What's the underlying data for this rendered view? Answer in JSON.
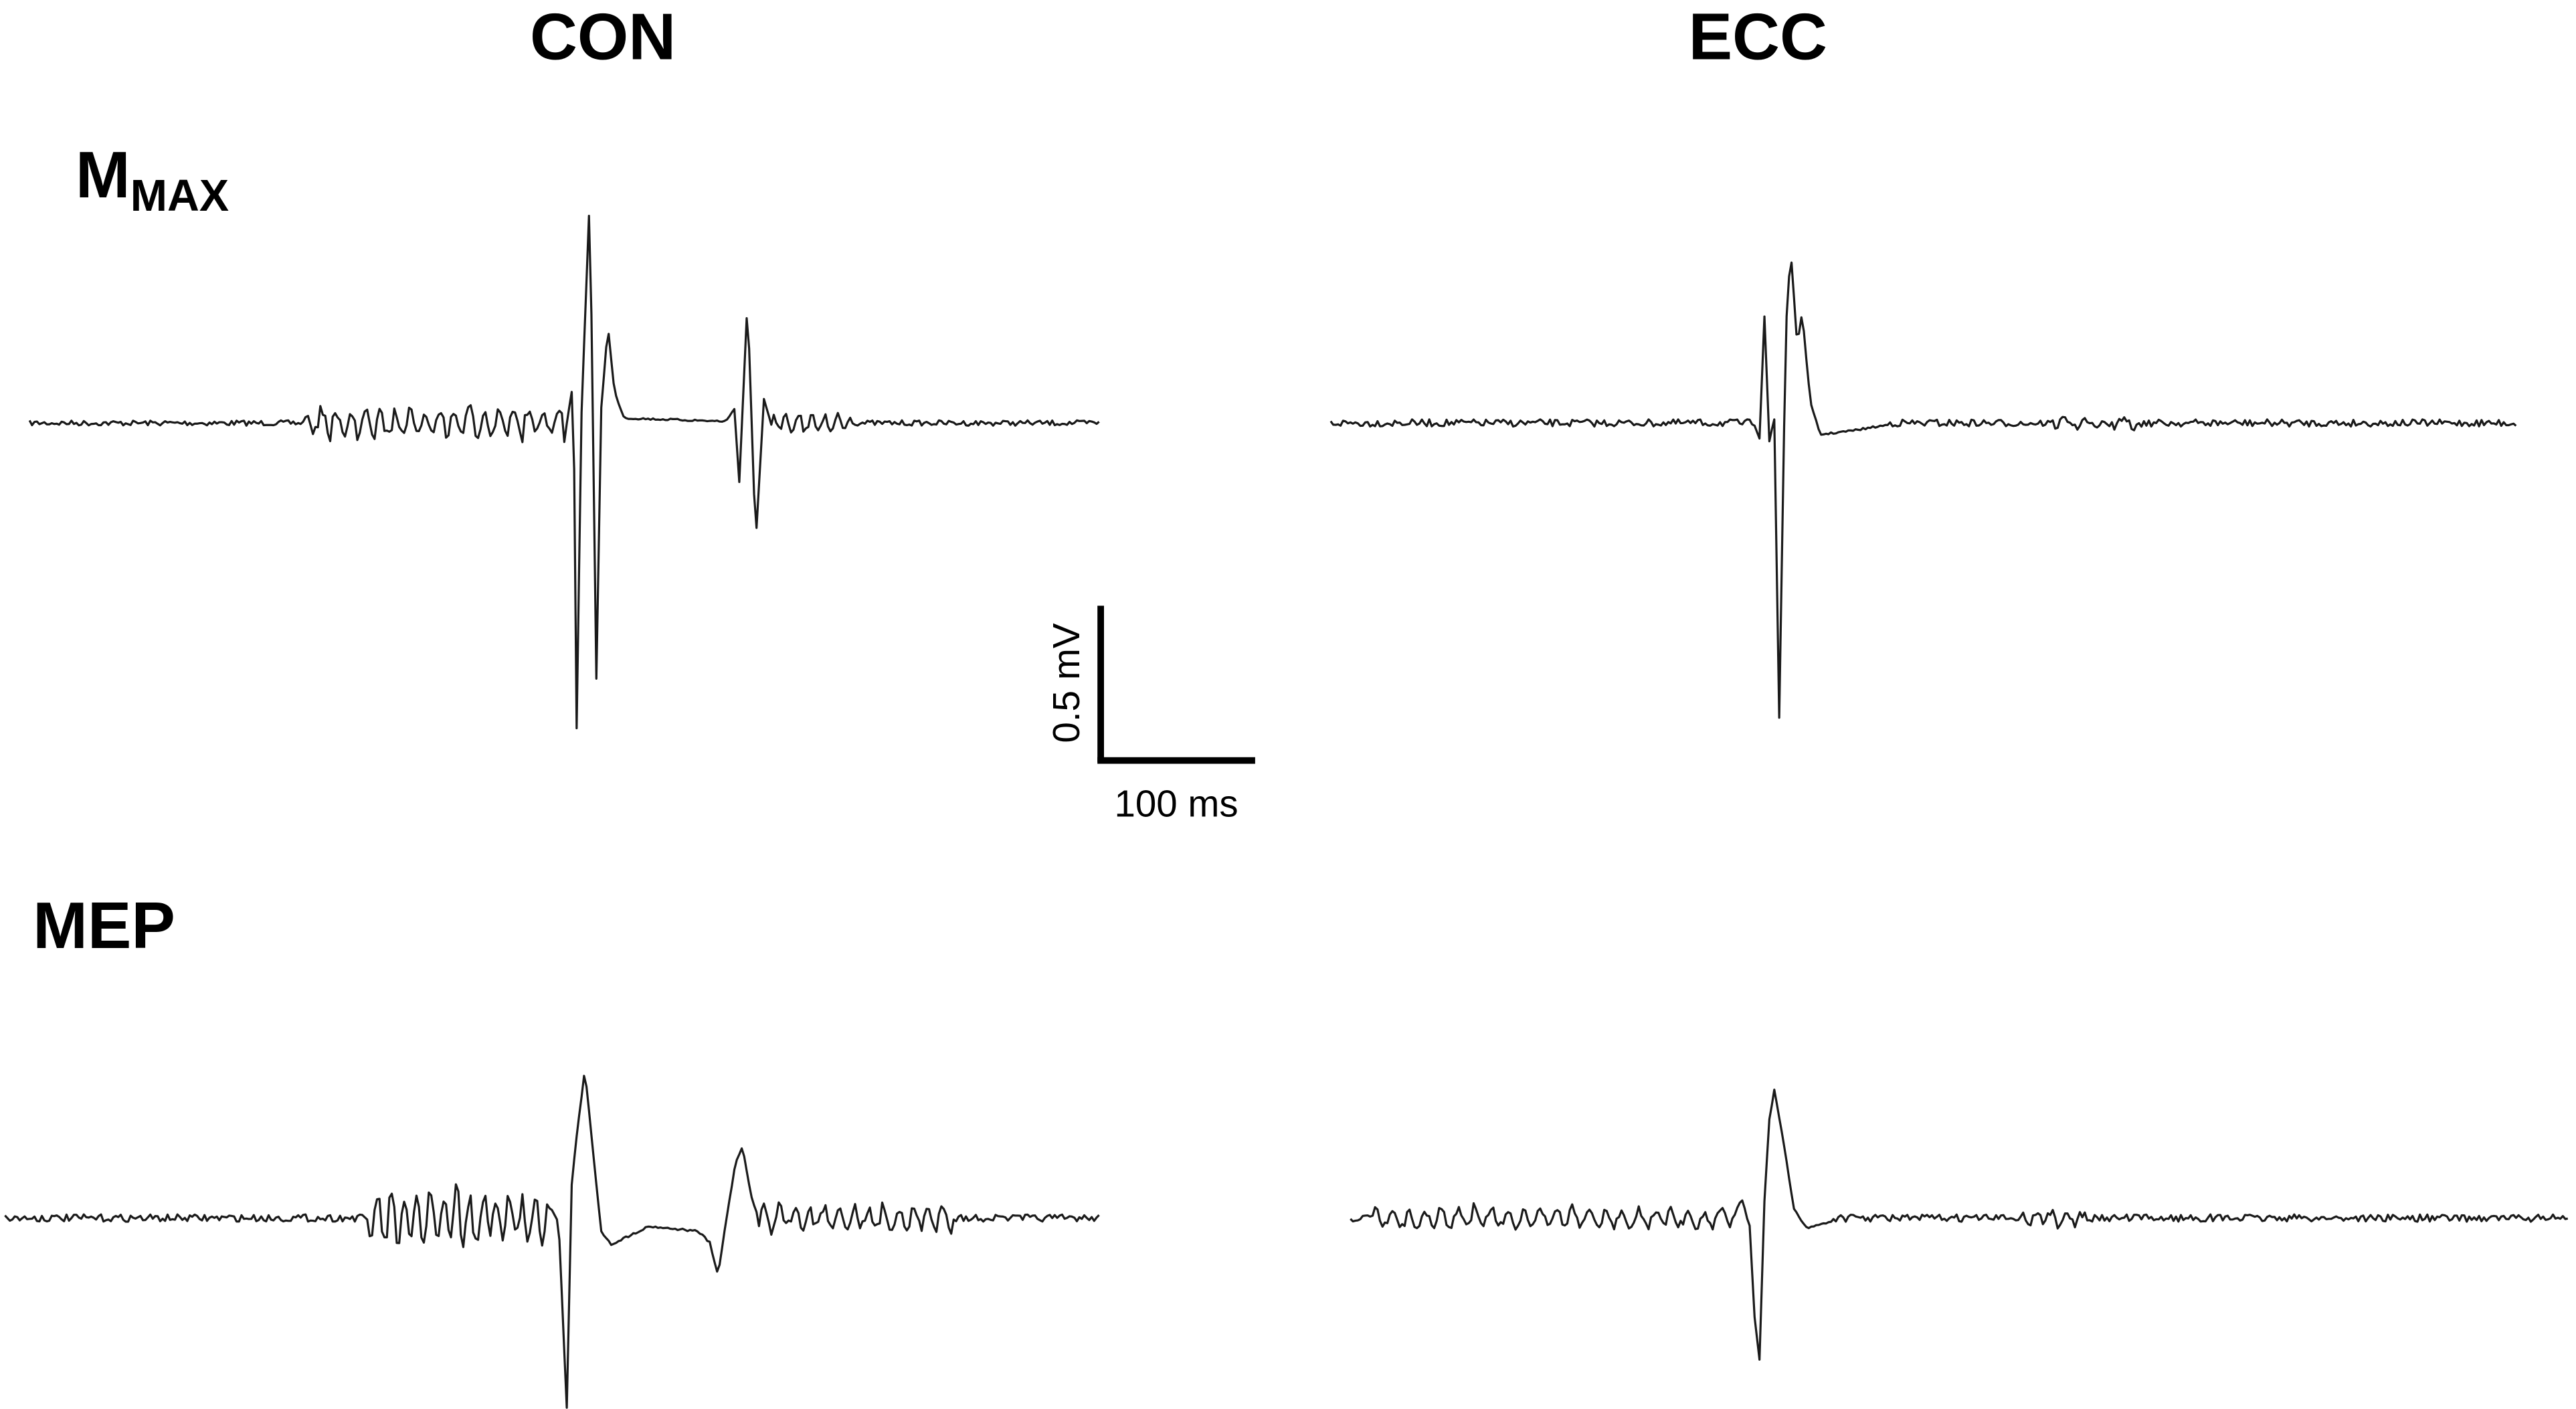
{
  "columns": [
    "CON",
    "ECC"
  ],
  "rows": [
    {
      "label": "M",
      "subscript": "MAX"
    },
    {
      "label": "MEP"
    }
  ],
  "scale_bar": {
    "vertical": "0.5 mV",
    "horizontal": "100 ms"
  }
}
